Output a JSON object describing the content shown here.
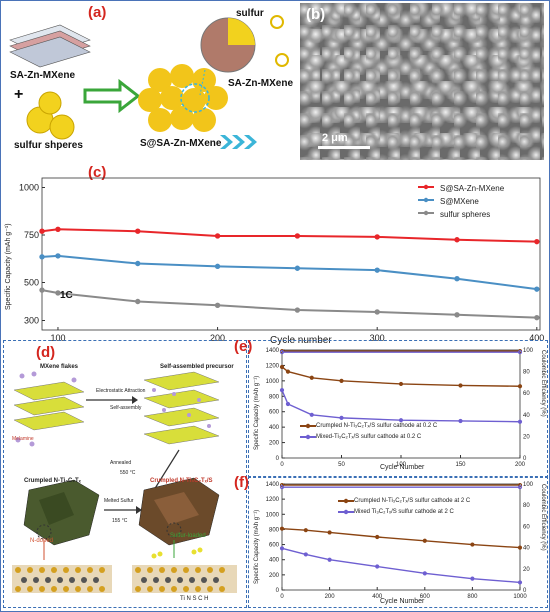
{
  "panel_a": {
    "tag": "(a)",
    "labels": {
      "sa_zn_mxene": "SA-Zn-MXene",
      "plus": "+",
      "sulfur_spheres": "sulfur shperes",
      "product": "S@SA-Zn-MXene",
      "sulfur": "sulfur",
      "zoom_mxene": "SA-Zn-MXene"
    },
    "colors": {
      "sphere": "#f2d21e",
      "arrow": "#3aa63a",
      "chevron": "#3bb5d8"
    }
  },
  "panel_b": {
    "tag": "(b)",
    "scale_bar": "2 μm"
  },
  "panel_c": {
    "tag": "(c)",
    "ylabel": "Specific Capacity (mAh g⁻¹)",
    "xlabel": "Cycle number",
    "annotation": "1C",
    "legend": [
      "S@SA-Zn-MXene",
      "S@MXene",
      "sulfur spheres"
    ]
  },
  "panel_d": {
    "tag": "(d)",
    "labels": {
      "mxene_flakes": "MXene flakes",
      "self_assembled": "Self-assembled precursor",
      "electrostatic": "Electrostatic Attraction",
      "self_assembly": "Self-assembly",
      "melamine": "Melamine",
      "annealed": "Annealed",
      "temp1": "550 °C",
      "crumpled_n": "Crumpled N-Ti₃C₂Tₓ",
      "crumpled_ns": "Crumpled N-Ti₃C₂Tₓ/S",
      "melted_sulfur": "Melted Sulfur",
      "temp2": "155 °C",
      "n_doped": "N-doped",
      "sulfur_loaded": "Sulfur-loaded",
      "elements": "Ti N S C H"
    }
  },
  "panel_e": {
    "tag": "(e)",
    "ylabel": "Specific Capacity (mAh g⁻¹)",
    "y2label": "Coulombic Efficiency (%)",
    "xlabel": "Cycle Number",
    "legend": [
      "Crumpled  N-Ti₃C₂Tₓ/S sulfur cathode at 0.2 C",
      "Mixed-Ti₃C₂Tₓ/S sulfur cathode at 0.2 C"
    ]
  },
  "panel_f": {
    "tag": "(f)",
    "ylabel": "Specific Capacity (mAh g⁻¹)",
    "y2label": "Coulombic Efficiency (%)",
    "xlabel": "Cycle Number",
    "legend": [
      "Crumpled N-Ti₃C₂Tₓ/S sulfur cathode at 2 C",
      "Mixed Ti₃C₂Tₓ/S sulfur cathode at 2 C"
    ]
  },
  "chart_data": [
    {
      "id": "c",
      "type": "line",
      "xlim": [
        90,
        402
      ],
      "ylim": [
        250,
        1050
      ],
      "xticks": [
        100,
        200,
        300,
        400
      ],
      "yticks": [
        300,
        500,
        750,
        1000
      ],
      "xlabel": "Cycle number",
      "ylabel": "Specific Capacity (mAh g⁻¹)",
      "series": [
        {
          "name": "S@SA-Zn-MXene",
          "color": "#e8262a",
          "x": [
            90,
            100,
            150,
            200,
            250,
            300,
            350,
            400
          ],
          "values": [
            770,
            780,
            770,
            745,
            745,
            740,
            725,
            715
          ]
        },
        {
          "name": "S@MXene",
          "color": "#4a8fc4",
          "x": [
            90,
            100,
            150,
            200,
            250,
            300,
            350,
            400
          ],
          "values": [
            635,
            640,
            600,
            585,
            575,
            565,
            520,
            465
          ]
        },
        {
          "name": "sulfur spheres",
          "color": "#8a8a8a",
          "x": [
            90,
            100,
            150,
            200,
            250,
            300,
            350,
            400
          ],
          "values": [
            460,
            445,
            400,
            380,
            355,
            345,
            330,
            315
          ]
        }
      ]
    },
    {
      "id": "e",
      "type": "line",
      "xlim": [
        0,
        200
      ],
      "ylim": [
        0,
        1400
      ],
      "y2lim": [
        0,
        100
      ],
      "xticks": [
        0,
        50,
        100,
        150,
        200
      ],
      "yticks": [
        0,
        200,
        400,
        600,
        800,
        1000,
        1200,
        1400
      ],
      "y2ticks": [
        0,
        20,
        40,
        60,
        80,
        100
      ],
      "xlabel": "Cycle Number",
      "series": [
        {
          "name": "Crumpled  N-Ti₃C₂Tₓ/S sulfur cathode at 0.2 C",
          "color": "#8b4513",
          "x": [
            0,
            5,
            25,
            50,
            100,
            150,
            200
          ],
          "values": [
            1180,
            1120,
            1040,
            1000,
            960,
            940,
            930
          ]
        },
        {
          "name": "Mixed-Ti₃C₂Tₓ/S sulfur cathode at 0.2 C",
          "color": "#6e5fd1",
          "x": [
            0,
            5,
            25,
            50,
            100,
            150,
            200
          ],
          "values": [
            880,
            700,
            560,
            520,
            490,
            480,
            470
          ]
        },
        {
          "name": "CE crumpled",
          "color": "#8b4513",
          "axis": "y2",
          "x": [
            0,
            200
          ],
          "values": [
            99,
            99
          ]
        },
        {
          "name": "CE mixed",
          "color": "#6e5fd1",
          "axis": "y2",
          "x": [
            0,
            200
          ],
          "values": [
            98,
            98
          ]
        }
      ]
    },
    {
      "id": "f",
      "type": "line",
      "xlim": [
        0,
        1000
      ],
      "ylim": [
        0,
        1400
      ],
      "y2lim": [
        0,
        100
      ],
      "xticks": [
        0,
        200,
        400,
        600,
        800,
        1000
      ],
      "yticks": [
        0,
        200,
        400,
        600,
        800,
        1000,
        1200,
        1400
      ],
      "y2ticks": [
        0,
        20,
        40,
        60,
        80,
        100
      ],
      "xlabel": "Cycle Number",
      "series": [
        {
          "name": "Crumpled N-Ti₃C₂Tₓ/S sulfur cathode at 2 C",
          "color": "#8b4513",
          "x": [
            0,
            100,
            200,
            400,
            600,
            800,
            1000
          ],
          "values": [
            810,
            790,
            760,
            700,
            650,
            600,
            560
          ]
        },
        {
          "name": "Mixed Ti₃C₂Tₓ/S sulfur cathode at 2 C",
          "color": "#6e5fd1",
          "x": [
            0,
            100,
            200,
            400,
            600,
            800,
            1000
          ],
          "values": [
            550,
            470,
            400,
            310,
            220,
            150,
            100
          ]
        },
        {
          "name": "CE crumpled",
          "color": "#8b4513",
          "axis": "y2",
          "x": [
            0,
            1000
          ],
          "values": [
            99,
            99
          ]
        },
        {
          "name": "CE mixed",
          "color": "#6e5fd1",
          "axis": "y2",
          "x": [
            0,
            1000
          ],
          "values": [
            97,
            97
          ]
        }
      ]
    }
  ]
}
